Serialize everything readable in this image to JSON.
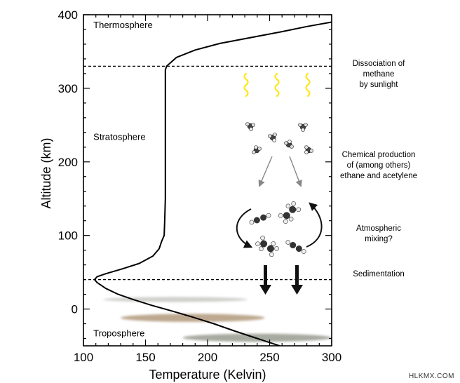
{
  "chart_data": {
    "type": "line",
    "xlabel": "Temperature (Kelvin)",
    "ylabel": "Altitude (km)",
    "xlim": [
      100,
      300
    ],
    "ylim": [
      -50,
      400
    ],
    "xticks": [
      100,
      150,
      200,
      250,
      300
    ],
    "yticks": [
      0,
      100,
      200,
      300,
      400
    ],
    "grid": false,
    "series": [
      {
        "color": "#000000",
        "points": [
          [
            258,
            -50
          ],
          [
            240,
            -40
          ],
          [
            222,
            -30
          ],
          [
            205,
            -20
          ],
          [
            188,
            -11
          ],
          [
            172,
            -3
          ],
          [
            155,
            5
          ],
          [
            140,
            13
          ],
          [
            128,
            20
          ],
          [
            118,
            28
          ],
          [
            111,
            36
          ],
          [
            109,
            40
          ],
          [
            111,
            44
          ],
          [
            118,
            48
          ],
          [
            132,
            55
          ],
          [
            145,
            62
          ],
          [
            156,
            72
          ],
          [
            161,
            82
          ],
          [
            163,
            92
          ],
          [
            165,
            100
          ],
          [
            165.5,
            120
          ],
          [
            166,
            150
          ],
          [
            166,
            200
          ],
          [
            166,
            250
          ],
          [
            166,
            300
          ],
          [
            166,
            325
          ],
          [
            167,
            330
          ],
          [
            175,
            342
          ],
          [
            190,
            352
          ],
          [
            210,
            361
          ],
          [
            235,
            369
          ],
          [
            260,
            377
          ],
          [
            280,
            384
          ],
          [
            300,
            390
          ]
        ]
      }
    ],
    "boundaries": [
      330,
      40
    ],
    "layer_labels": [
      {
        "text": "Thermosphere",
        "x": 108,
        "y": 382
      },
      {
        "text": "Stratosphere",
        "x": 108,
        "y": 230
      },
      {
        "text": "Troposphere",
        "x": 108,
        "y": -37
      }
    ],
    "annotations": [
      {
        "lines": [
          "Dissociation of",
          "methane",
          "by sunlight"
        ],
        "y": 320
      },
      {
        "lines": [
          "Chemical production",
          "of (among others)",
          "ethane and acetylene"
        ],
        "y": 196
      },
      {
        "lines": [
          "Atmospheric",
          "mixing?"
        ],
        "y": 103
      },
      {
        "lines": [
          "Sedimentation"
        ],
        "y": 48
      }
    ],
    "clouds": [
      {
        "color": "#d0d0cc",
        "xmin": 116,
        "xmax": 232,
        "y": 13,
        "thickness": 3.5
      },
      {
        "color": "#bda88f",
        "xmin": 130,
        "xmax": 246,
        "y": -12,
        "thickness": 5.5
      },
      {
        "color": "#a7aaa0",
        "xmin": 180,
        "xmax": 300,
        "y": -39,
        "thickness": 5.5
      }
    ],
    "sun_color": "#ffe61a"
  },
  "watermark": "HLKMX.COM"
}
